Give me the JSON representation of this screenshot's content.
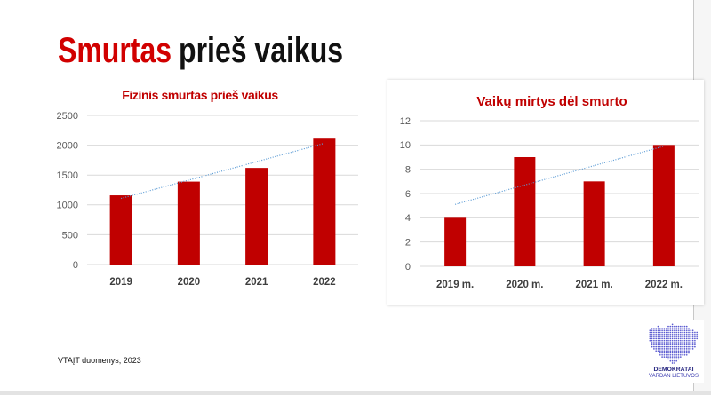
{
  "slide": {
    "title_accent": "Smurtas",
    "title_rest": "prieš vaikus",
    "source_note": "VTAĮT duomenys, 2023",
    "logo": {
      "icon": "lithuania-map-icon",
      "line1": "DEMOKRATAI",
      "line2": "VARDAN LIETUVOS"
    }
  },
  "colors": {
    "title_accent": "#d10000",
    "chart_title": "#c00000",
    "bar": "#c00000",
    "trendline": "#5b9bd5",
    "grid": "#d9d9d9",
    "logo": "#5a5ad0"
  },
  "chart_data": [
    {
      "type": "bar",
      "title": "Fizinis smurtas prieš vaikus",
      "categories": [
        "2019",
        "2020",
        "2021",
        "2022"
      ],
      "values": [
        1160,
        1390,
        1620,
        2110
      ],
      "ylim": [
        0,
        2500
      ],
      "yticks": [
        0,
        500,
        1000,
        1500,
        2000,
        2500
      ],
      "xlabel": "",
      "ylabel": "",
      "grid": true,
      "legend": "none",
      "trendline": "linear"
    },
    {
      "type": "bar",
      "title": "Vaikų mirtys dėl smurto",
      "categories": [
        "2019 m.",
        "2020 m.",
        "2021 m.",
        "2022 m."
      ],
      "values": [
        4,
        9,
        7,
        10
      ],
      "ylim": [
        0,
        12
      ],
      "yticks": [
        0,
        2,
        4,
        6,
        8,
        10,
        12
      ],
      "xlabel": "",
      "ylabel": "",
      "grid": true,
      "legend": "none",
      "trendline": "linear"
    }
  ]
}
